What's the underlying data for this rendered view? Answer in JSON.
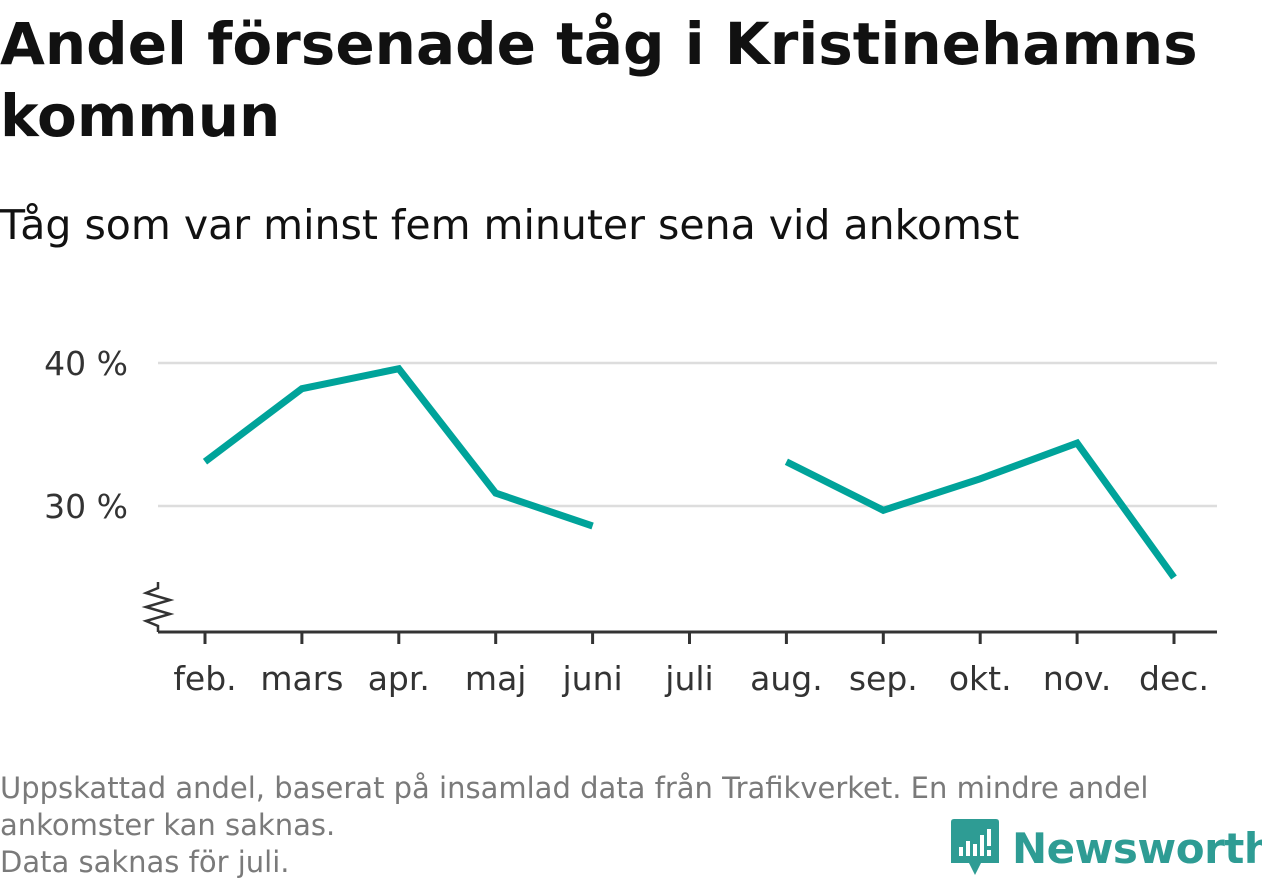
{
  "title": "Andel försenade tåg i Kristinehamns kommun",
  "subtitle": "Tåg som var minst fem minuter sena vid ankomst",
  "chart_data": {
    "type": "line",
    "categories": [
      "feb.",
      "mars",
      "apr.",
      "maj",
      "juni",
      "juli",
      "aug.",
      "sep.",
      "okt.",
      "nov.",
      "dec."
    ],
    "series": [
      {
        "values": [
          33.1,
          38.2,
          39.6,
          30.9,
          28.6,
          null,
          33.1,
          29.7,
          31.9,
          34.4,
          25.0
        ],
        "color": "#00a39a"
      }
    ],
    "y_ticks": [
      30,
      40
    ],
    "y_tick_labels": [
      "30 %",
      "40 %"
    ],
    "ylim": [
      21.5,
      42
    ],
    "y_axis_break": true,
    "grid": "horizontal",
    "xlabel": "",
    "ylabel": ""
  },
  "colors": {
    "line": "#00a39a",
    "grid": "#dddddd",
    "axis": "#333333",
    "footer_text": "#7a7a7a",
    "brand": "#2e9c94"
  },
  "footer": {
    "line1": "Uppskattad andel, baserat på insamlad data från Trafikverket. En mindre andel",
    "line2": "ankomster kan saknas.",
    "line3": "Data saknas för juli."
  },
  "brand": {
    "name": "Newsworthy",
    "icon": "newsworthy-logo-icon"
  }
}
